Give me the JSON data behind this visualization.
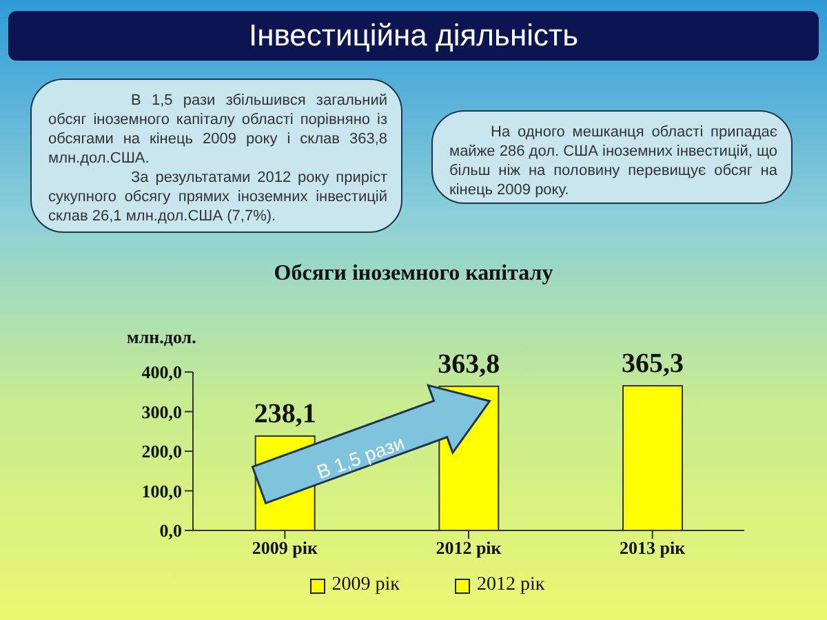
{
  "chart_data": {
    "type": "bar",
    "title": "Обсяги іноземного капіталу",
    "ylabel": "млн.дол.",
    "annotations": [
      "Інвестиційна діяльність",
      "В 1,5 рази збільшився загальний обсяг іноземного капіталу області порівняно із обсягами на кінець 2009 року і склав 363,8 млн.дол.США.",
      "За результатами 2012 року приріст сукупного обсягу прямих іноземних інвестицій склав 26,1 млн.дол.США (7,7%).",
      "На одного мешканця області припадає майже 286 дол. США іноземних інвестицій, що більш ніж на половину перевищує обсяг на кінець 2009 року.",
      "В 1,5 рази"
    ],
    "categories": [
      "2009 рік",
      "2012 рік",
      "2013 рік"
    ],
    "series": [
      {
        "name": "2009 рік",
        "color": "#ffff00",
        "values": [
          238.1,
          null,
          null
        ],
        "value_labels": [
          "238,1",
          null,
          null
        ]
      },
      {
        "name": "2012 рік",
        "color": "#ffff00",
        "values": [
          null,
          363.8,
          null
        ],
        "value_labels": [
          null,
          "363,8",
          null
        ]
      },
      {
        "color": "#ffff00",
        "values": [
          null,
          null,
          365.3
        ],
        "value_labels": [
          null,
          null,
          "365,3"
        ]
      }
    ],
    "ylim": [
      0,
      400
    ],
    "yticks": [
      {
        "value": 0,
        "label": "0,0"
      },
      {
        "value": 100,
        "label": "100,0"
      },
      {
        "value": 200,
        "label": "200,0"
      },
      {
        "value": 300,
        "label": "300,0"
      },
      {
        "value": 400,
        "label": "400,0"
      }
    ],
    "grid": false,
    "legend": "bottom"
  }
}
